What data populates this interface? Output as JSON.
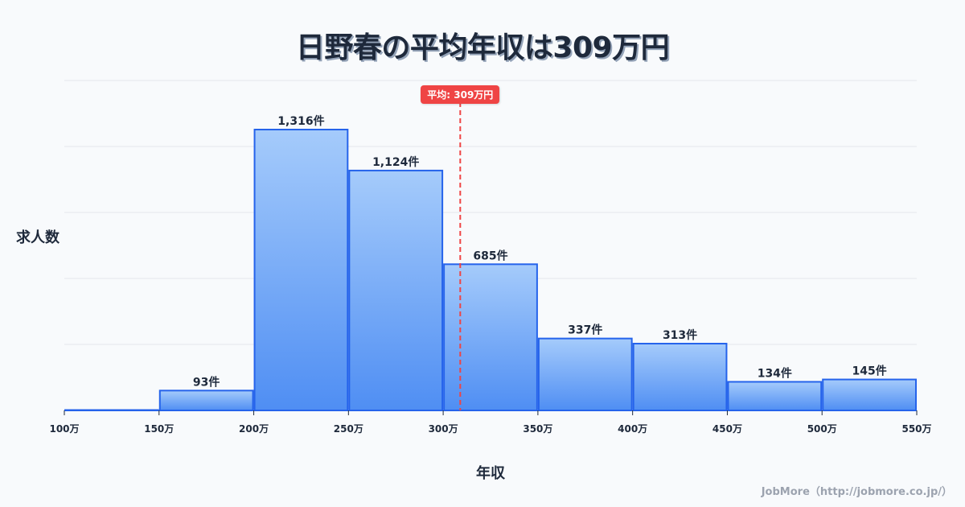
{
  "title": "日野春の平均年収は309万円",
  "ylabel": "求人数",
  "xlabel": "年収",
  "credit": "JobMore（http://jobmore.co.jp/）",
  "average_badge": "平均: 309万円",
  "colors": {
    "bar_fill_top": "#a5cbfb",
    "bar_fill_bottom": "#4f8ef3",
    "bar_stroke": "#2563eb",
    "average_line": "#ef4444",
    "grid": "#e5e7eb",
    "text": "#1e293b"
  },
  "chart_data": {
    "type": "bar",
    "title": "日野春の平均年収は309万円",
    "xlabel": "年収",
    "ylabel": "求人数",
    "bins": [
      {
        "from": 100,
        "to": 150,
        "value": 0,
        "label": ""
      },
      {
        "from": 150,
        "to": 200,
        "value": 93,
        "label": "93件"
      },
      {
        "from": 200,
        "to": 250,
        "value": 1316,
        "label": "1,316件"
      },
      {
        "from": 250,
        "to": 300,
        "value": 1124,
        "label": "1,124件"
      },
      {
        "from": 300,
        "to": 350,
        "value": 685,
        "label": "685件"
      },
      {
        "from": 350,
        "to": 400,
        "value": 337,
        "label": "337件"
      },
      {
        "from": 400,
        "to": 450,
        "value": 313,
        "label": "313件"
      },
      {
        "from": 450,
        "to": 500,
        "value": 134,
        "label": "134件"
      },
      {
        "from": 500,
        "to": 550,
        "value": 145,
        "label": "145件"
      }
    ],
    "categories": [
      "100万",
      "150万",
      "200万",
      "250万",
      "300万",
      "350万",
      "400万",
      "450万",
      "500万",
      "550万"
    ],
    "values": [
      0,
      93,
      1316,
      1124,
      685,
      337,
      313,
      134,
      145
    ],
    "x_ticks": [
      "100万",
      "150万",
      "200万",
      "250万",
      "300万",
      "350万",
      "400万",
      "450万",
      "500万",
      "550万"
    ],
    "average": {
      "value": 309,
      "label": "平均: 309万円"
    },
    "xlim": [
      100,
      550
    ],
    "ylim": [
      0,
      1546
    ],
    "grid": true,
    "y_tick_labels_visible": false
  }
}
